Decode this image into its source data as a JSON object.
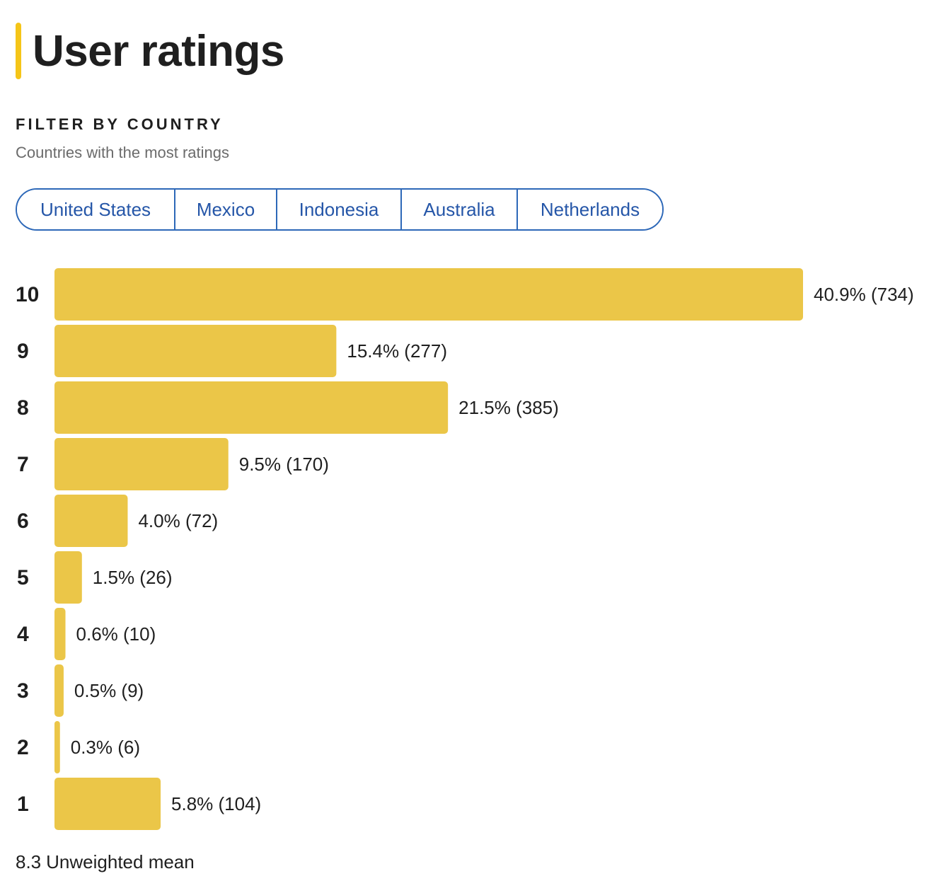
{
  "header": {
    "title": "User ratings"
  },
  "filter": {
    "heading": "FILTER BY COUNTRY",
    "subheading": "Countries with the most ratings",
    "countries": [
      "United States",
      "Mexico",
      "Indonesia",
      "Australia",
      "Netherlands"
    ]
  },
  "colors": {
    "accent": "#f5c518",
    "bar": "#ebc648",
    "link": "#2556a8"
  },
  "chart_data": {
    "type": "bar",
    "orientation": "horizontal",
    "categories": [
      "10",
      "9",
      "8",
      "7",
      "6",
      "5",
      "4",
      "3",
      "2",
      "1"
    ],
    "values": [
      40.9,
      15.4,
      21.5,
      9.5,
      4.0,
      1.5,
      0.6,
      0.5,
      0.3,
      5.8
    ],
    "counts": [
      734,
      277,
      385,
      170,
      72,
      26,
      10,
      9,
      6,
      104
    ],
    "data_labels": [
      "40.9% (734)",
      "15.4% (277)",
      "21.5% (385)",
      "9.5% (170)",
      "4.0% (72)",
      "1.5% (26)",
      "0.6% (10)",
      "0.5% (9)",
      "0.3% (6)",
      "5.8% (104)"
    ],
    "title": "",
    "xlabel": "",
    "ylabel": "",
    "grid": false,
    "legend": "none"
  },
  "summary": {
    "mean_value": "8.3",
    "mean_label": "Unweighted mean"
  }
}
